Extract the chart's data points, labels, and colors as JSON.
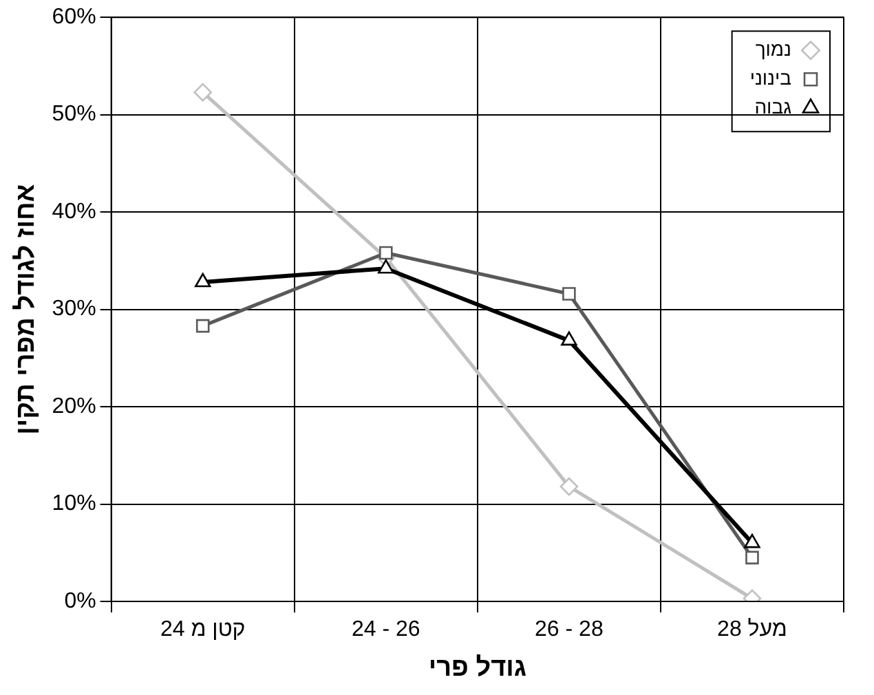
{
  "chart_data": {
    "type": "line",
    "xlabel": "גודל פרי",
    "ylabel": "אחוז לגודל מפרי תקין",
    "categories": [
      "קטן מ 24",
      "24 - 26",
      "26 - 28",
      "מעל 28"
    ],
    "series": [
      {
        "name": "נמוך",
        "color": "#c0c0c0",
        "marker": "diamond",
        "values": [
          52.3,
          35.3,
          11.8,
          0.3
        ]
      },
      {
        "name": "בינוני",
        "color": "#595959",
        "marker": "square",
        "values": [
          28.3,
          35.8,
          31.6,
          4.5
        ]
      },
      {
        "name": "גבוה",
        "color": "#000000",
        "marker": "triangle",
        "values": [
          32.8,
          34.2,
          26.8,
          6
        ]
      }
    ],
    "ylim": [
      0,
      60
    ],
    "yticks": [
      {
        "value": 0,
        "label": "0%"
      },
      {
        "value": 10,
        "label": "10%"
      },
      {
        "value": 20,
        "label": "20%"
      },
      {
        "value": 30,
        "label": "30%"
      },
      {
        "value": 40,
        "label": "40%"
      },
      {
        "value": 50,
        "label": "50%"
      },
      {
        "value": 60,
        "label": "60%"
      }
    ],
    "grid": true,
    "legend": "top right",
    "line_style": "solid"
  }
}
